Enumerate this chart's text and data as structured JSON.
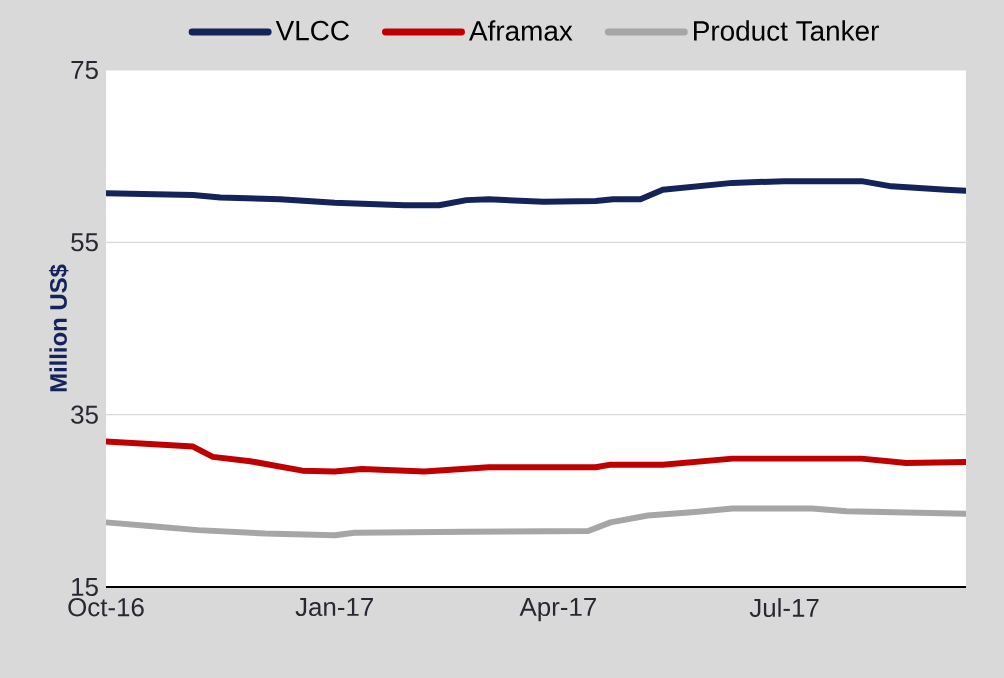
{
  "chart_data": {
    "type": "line",
    "ylabel": "Million US$",
    "xlim": [
      "2016-10-01",
      "2017-09-12"
    ],
    "ylim": [
      15,
      75
    ],
    "xticks": [
      {
        "value": "2016-10-01",
        "label": "Oct-16"
      },
      {
        "value": "2017-01-01",
        "label": "Jan-17"
      },
      {
        "value": "2017-04-01",
        "label": "Apr-17"
      },
      {
        "value": "2017-07-01",
        "label": "Jul-17"
      }
    ],
    "yticks": [
      15,
      35,
      55,
      75
    ],
    "grid": "y",
    "legend": "top",
    "series": [
      {
        "name": "VLCC",
        "color": "#14235a",
        "x": [
          "2016-10-01",
          "2016-11-05",
          "2016-11-16",
          "2016-12-10",
          "2017-01-01",
          "2017-01-29",
          "2017-02-12",
          "2017-02-23",
          "2017-03-04",
          "2017-03-26",
          "2017-04-16",
          "2017-04-23",
          "2017-05-04",
          "2017-05-13",
          "2017-06-10",
          "2017-07-01",
          "2017-08-01",
          "2017-08-13",
          "2017-09-04",
          "2017-09-12"
        ],
        "values": [
          60.7,
          60.5,
          60.2,
          60.0,
          59.6,
          59.3,
          59.3,
          59.9,
          60.0,
          59.7,
          59.8,
          60.0,
          60.0,
          61.1,
          61.9,
          62.1,
          62.1,
          61.5,
          61.1,
          61.0
        ]
      },
      {
        "name": "Aframax",
        "color": "#c00000",
        "x": [
          "2016-10-01",
          "2016-11-05",
          "2016-11-13",
          "2016-11-28",
          "2016-12-19",
          "2017-01-01",
          "2017-01-12",
          "2017-02-06",
          "2017-03-04",
          "2017-04-16",
          "2017-04-22",
          "2017-05-13",
          "2017-06-10",
          "2017-08-01",
          "2017-08-19",
          "2017-09-12"
        ],
        "values": [
          31.9,
          31.3,
          30.1,
          29.6,
          28.5,
          28.4,
          28.7,
          28.4,
          28.9,
          28.9,
          29.2,
          29.2,
          29.9,
          29.9,
          29.4,
          29.5
        ]
      },
      {
        "name": "Product Tanker",
        "color": "#a6a6a6",
        "x": [
          "2016-10-01",
          "2016-10-22",
          "2016-11-07",
          "2016-12-04",
          "2017-01-01",
          "2017-01-09",
          "2017-02-23",
          "2017-04-13",
          "2017-04-22",
          "2017-05-07",
          "2017-05-26",
          "2017-06-10",
          "2017-07-12",
          "2017-07-26",
          "2017-09-12"
        ],
        "values": [
          22.5,
          22.0,
          21.6,
          21.2,
          21.0,
          21.3,
          21.4,
          21.5,
          22.5,
          23.3,
          23.7,
          24.1,
          24.1,
          23.8,
          23.5
        ]
      }
    ]
  }
}
